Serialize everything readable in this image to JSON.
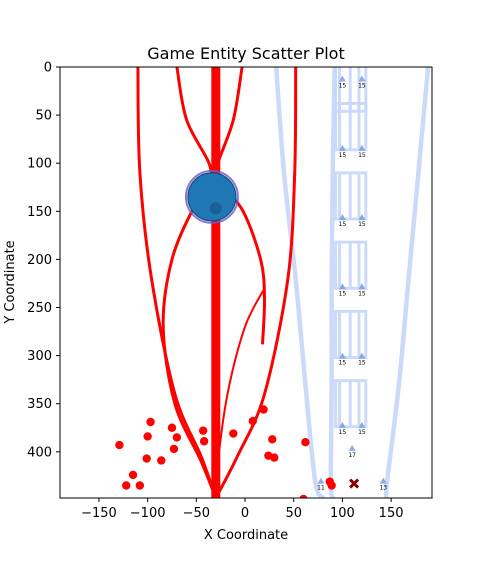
{
  "chart_data": {
    "type": "scatter",
    "title": "Game Entity Scatter Plot",
    "xlabel": "X Coordinate",
    "ylabel": "Y Coordinate",
    "xlim": [
      -190,
      192
    ],
    "ylim": [
      448,
      0
    ],
    "y_inverted": true,
    "grid": false,
    "x_ticks": [
      -150,
      -100,
      -50,
      0,
      50,
      100,
      150
    ],
    "y_ticks": [
      0,
      50,
      100,
      150,
      200,
      250,
      300,
      350,
      400
    ],
    "colors": {
      "enemy": "#ff0000",
      "player": "#1f77b4",
      "player_ring": "#6a5acd",
      "lane": "#c6d6f8",
      "tower": "#7a9ee0",
      "marker": "#8b0000"
    },
    "red_curves": [
      {
        "points": [
          [
            -30,
            0
          ],
          [
            -30,
            448
          ]
        ],
        "width": 9
      },
      {
        "points": [
          [
            -110,
            0
          ],
          [
            -108,
            110
          ],
          [
            -96,
            220
          ],
          [
            -72,
            340
          ],
          [
            -45,
            405
          ],
          [
            -30,
            448
          ]
        ],
        "width": 3
      },
      {
        "points": [
          [
            52,
            0
          ],
          [
            51,
            110
          ],
          [
            44,
            220
          ],
          [
            20,
            340
          ],
          [
            -8,
            405
          ],
          [
            -30,
            448
          ]
        ],
        "width": 3
      },
      {
        "points": [
          [
            -70,
            0
          ],
          [
            -60,
            55
          ],
          [
            -37,
            100
          ],
          [
            -33,
            125
          ],
          [
            -28,
            100
          ],
          [
            -12,
            55
          ],
          [
            -3,
            0
          ]
        ],
        "width": 3
      },
      {
        "points": [
          [
            -33,
            120
          ],
          [
            -52,
            145
          ],
          [
            -75,
            200
          ],
          [
            -84,
            270
          ],
          [
            -72,
            350
          ],
          [
            -45,
            410
          ],
          [
            -30,
            448
          ]
        ],
        "width": 3
      },
      {
        "points": [
          [
            -26,
            120
          ],
          [
            -2,
            150
          ],
          [
            16,
            200
          ],
          [
            20,
            240
          ],
          [
            18,
            287
          ]
        ],
        "width": 3
      },
      {
        "points": [
          [
            -30,
            448
          ],
          [
            -28,
            412
          ],
          [
            -18,
            340
          ],
          [
            0,
            270
          ],
          [
            20,
            230
          ]
        ],
        "width": 2
      }
    ],
    "enemies": [
      [
        -129,
        393
      ],
      [
        -122,
        435
      ],
      [
        -115,
        424
      ],
      [
        -108,
        435
      ],
      [
        -101,
        407
      ],
      [
        -100,
        384
      ],
      [
        -97,
        369
      ],
      [
        -86,
        409
      ],
      [
        -75,
        375
      ],
      [
        -73,
        397
      ],
      [
        -70,
        385
      ],
      [
        -43,
        378
      ],
      [
        -42,
        389
      ],
      [
        -12,
        381
      ],
      [
        8,
        368
      ],
      [
        19,
        356
      ],
      [
        24,
        404
      ],
      [
        28,
        387
      ],
      [
        30,
        406
      ],
      [
        62,
        390
      ],
      [
        60,
        449
      ],
      [
        87,
        431
      ],
      [
        89,
        435
      ]
    ],
    "player": {
      "x": -34,
      "y": 135,
      "size": 24
    },
    "lanes": [
      {
        "points": [
          [
            32,
            0
          ],
          [
            40,
            110
          ],
          [
            52,
            220
          ],
          [
            62,
            330
          ],
          [
            72,
            430
          ],
          [
            80,
            448
          ]
        ]
      },
      {
        "points": [
          [
            92,
            0
          ],
          [
            90,
            110
          ],
          [
            89,
            220
          ],
          [
            89,
            330
          ],
          [
            88,
            430
          ],
          [
            90,
            448
          ]
        ]
      },
      {
        "points": [
          [
            188,
            0
          ],
          [
            178,
            110
          ],
          [
            168,
            220
          ],
          [
            158,
            330
          ],
          [
            146,
            430
          ],
          [
            145,
            448
          ]
        ]
      }
    ],
    "towers": [
      {
        "x": 100,
        "y": 13,
        "label": "15"
      },
      {
        "x": 120,
        "y": 13,
        "label": "15"
      },
      {
        "x": 100,
        "y": 85,
        "label": "15"
      },
      {
        "x": 120,
        "y": 85,
        "label": "15"
      },
      {
        "x": 100,
        "y": 157,
        "label": "15"
      },
      {
        "x": 120,
        "y": 157,
        "label": "15"
      },
      {
        "x": 100,
        "y": 229,
        "label": "15"
      },
      {
        "x": 120,
        "y": 229,
        "label": "15"
      },
      {
        "x": 100,
        "y": 301,
        "label": "15"
      },
      {
        "x": 120,
        "y": 301,
        "label": "15"
      },
      {
        "x": 100,
        "y": 373,
        "label": "15"
      },
      {
        "x": 120,
        "y": 373,
        "label": "15"
      },
      {
        "x": 110,
        "y": 397,
        "label": "17"
      },
      {
        "x": 78,
        "y": 431,
        "label": "11"
      },
      {
        "x": 142,
        "y": 431,
        "label": "13"
      }
    ],
    "marker_x": {
      "x": 112,
      "y": 433
    }
  }
}
